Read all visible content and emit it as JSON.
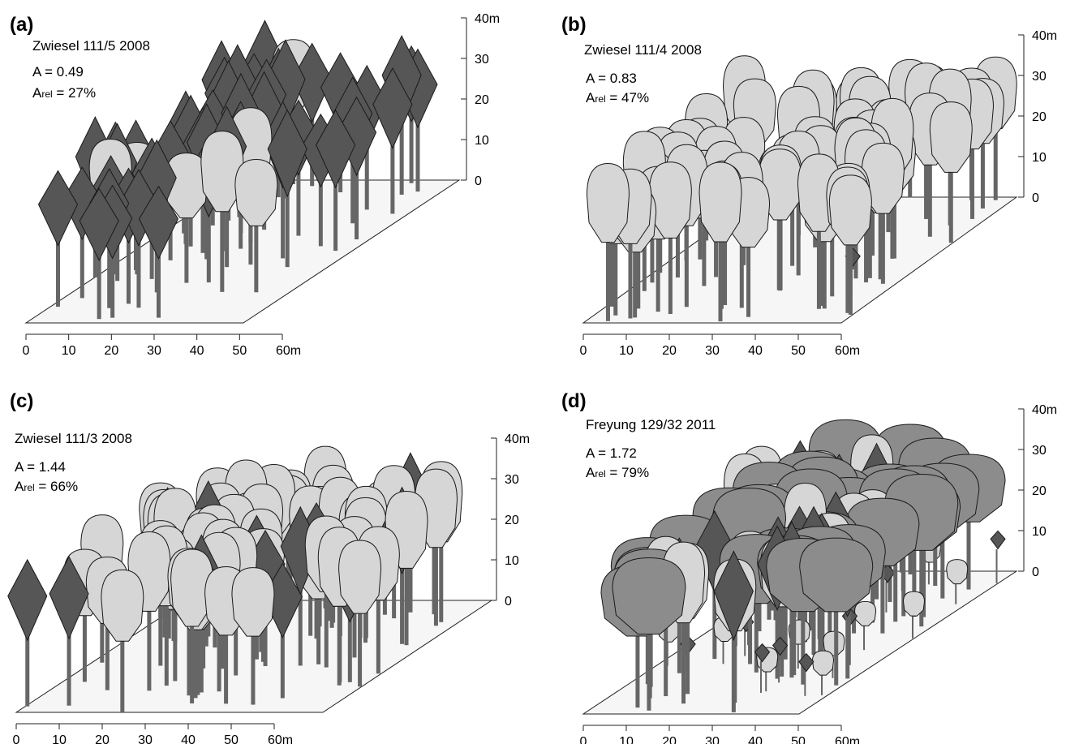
{
  "panels": [
    {
      "letter": "(a)",
      "plot_name": "Zwiesel 111/5 2008",
      "a_label": "A = 0.49",
      "arel_label_a": "A",
      "arel_label_sub": "rel",
      "arel_label_value": " = 27%",
      "x_ticks": [
        "0",
        "10",
        "20",
        "30",
        "40",
        "50",
        "60m"
      ],
      "z_ticks": [
        "0",
        "10",
        "20",
        "30",
        "40m"
      ],
      "species_mix": "conifer"
    },
    {
      "letter": "(b)",
      "plot_name": "Zwiesel 111/4 2008",
      "a_label": "A = 0.83",
      "arel_label_a": "A",
      "arel_label_sub": "rel",
      "arel_label_value": " = 47%",
      "x_ticks": [
        "0",
        "10",
        "20",
        "30",
        "40",
        "50",
        "60m"
      ],
      "z_ticks": [
        "0",
        "10",
        "20",
        "30",
        "40m"
      ],
      "species_mix": "broadleaf"
    },
    {
      "letter": "(c)",
      "plot_name": "Zwiesel 111/3 2008",
      "a_label": "A = 1.44",
      "arel_label_a": "A",
      "arel_label_sub": "rel",
      "arel_label_value": " = 66%",
      "x_ticks": [
        "0",
        "10",
        "20",
        "30",
        "40",
        "50",
        "60m"
      ],
      "z_ticks": [
        "0",
        "10",
        "20",
        "30",
        "40m"
      ],
      "species_mix": "mixed"
    },
    {
      "letter": "(d)",
      "plot_name": "Freyung 129/32 2011",
      "a_label": "A = 1.72",
      "arel_label_a": "A",
      "arel_label_sub": "rel",
      "arel_label_value": " = 79%",
      "x_ticks": [
        "0",
        "10",
        "20",
        "30",
        "40",
        "50",
        "60m"
      ],
      "z_ticks": [
        "0",
        "10",
        "20",
        "30",
        "40m"
      ],
      "species_mix": "mixed-multi"
    }
  ],
  "colors": {
    "conifer_crown": "#565656",
    "broadleaf_crown": "#d6d6d6",
    "mid_crown": "#8c8c8c",
    "stem": "#666666",
    "ground": "#f6f6f6",
    "outline": "#1a1a1a"
  }
}
